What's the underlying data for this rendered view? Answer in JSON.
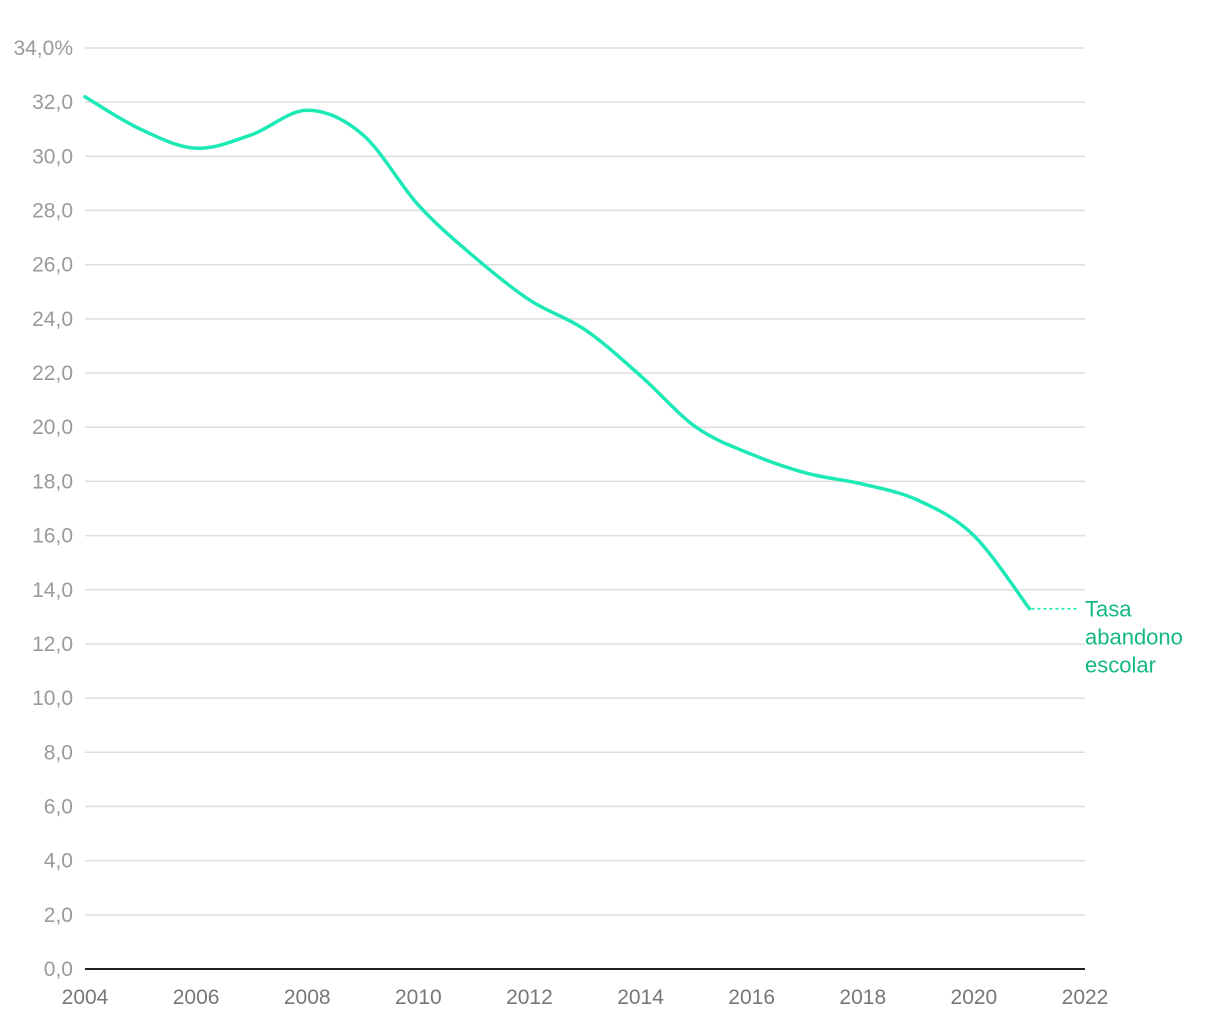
{
  "chart_data": {
    "type": "line",
    "title": "",
    "xlabel": "",
    "ylabel": "",
    "x": [
      2004,
      2005,
      2006,
      2007,
      2008,
      2009,
      2010,
      2011,
      2012,
      2013,
      2014,
      2015,
      2016,
      2017,
      2018,
      2019,
      2020,
      2021
    ],
    "series": [
      {
        "name": "Tasa abandono escolar",
        "label_lines": [
          "Tasa",
          "abandono",
          "escolar"
        ],
        "values": [
          32.2,
          31.0,
          30.3,
          30.8,
          31.7,
          30.8,
          28.2,
          26.3,
          24.7,
          23.6,
          21.9,
          20.0,
          19.0,
          18.3,
          17.9,
          17.3,
          16.0,
          13.3
        ],
        "color": "#1de9b6",
        "label_color": "#14b981"
      }
    ],
    "xlim": [
      2004,
      2022
    ],
    "ylim": [
      0,
      34
    ],
    "x_ticks": [
      "2004",
      "2006",
      "2008",
      "2010",
      "2012",
      "2014",
      "2016",
      "2018",
      "2020",
      "2022"
    ],
    "y_ticks": [
      "0,0",
      "2,0",
      "4,0",
      "6,0",
      "8,0",
      "10,0",
      "12,0",
      "14,0",
      "16,0",
      "18,0",
      "20,0",
      "22,0",
      "24,0",
      "26,0",
      "28,0",
      "30,0",
      "32,0",
      "34,0%"
    ],
    "grid": true,
    "legend": "direct label at end of line"
  }
}
